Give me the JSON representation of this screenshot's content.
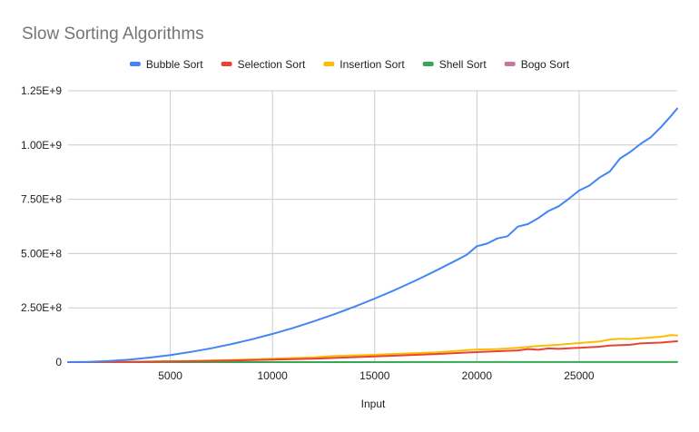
{
  "chart_data": {
    "type": "line",
    "title": "Slow Sorting Algorithms",
    "xlabel": "Input",
    "ylabel": "",
    "xlim": [
      0,
      29800
    ],
    "ylim": [
      0,
      1250000000
    ],
    "x_ticks": [
      5000,
      10000,
      15000,
      20000,
      25000
    ],
    "x_tick_labels": [
      "5000",
      "10000",
      "15000",
      "20000",
      "25000"
    ],
    "y_ticks": [
      0,
      250000000,
      500000000,
      750000000,
      1000000000,
      1250000000
    ],
    "y_tick_labels": [
      "0",
      "2.50E+8",
      "5.00E+8",
      "7.50E+8",
      "1.00E+9",
      "1.25E+9"
    ],
    "grid": true,
    "legend_position": "top",
    "series": [
      {
        "name": "Bubble Sort",
        "color": "#4285f4",
        "points": [
          [
            0,
            0
          ],
          [
            1000,
            1300000
          ],
          [
            2000,
            5200000
          ],
          [
            3000,
            11700000
          ],
          [
            4000,
            20800000
          ],
          [
            5000,
            32500000
          ],
          [
            6000,
            46800000
          ],
          [
            7000,
            63700000
          ],
          [
            8000,
            83200000
          ],
          [
            9000,
            105300000
          ],
          [
            10000,
            130000000
          ],
          [
            11000,
            157300000
          ],
          [
            12000,
            187200000
          ],
          [
            13000,
            219700000
          ],
          [
            14000,
            254800000
          ],
          [
            15000,
            292500000
          ],
          [
            16000,
            332800000
          ],
          [
            17000,
            375700000
          ],
          [
            18000,
            421200000
          ],
          [
            19000,
            469300000
          ],
          [
            19500,
            494300000
          ],
          [
            20000,
            534000000
          ],
          [
            20500,
            546000000
          ],
          [
            21000,
            570000000
          ],
          [
            21500,
            580000000
          ],
          [
            22000,
            624000000
          ],
          [
            22500,
            636000000
          ],
          [
            23000,
            663000000
          ],
          [
            23500,
            696000000
          ],
          [
            24000,
            718000000
          ],
          [
            24500,
            753000000
          ],
          [
            25000,
            790000000
          ],
          [
            25500,
            813000000
          ],
          [
            26000,
            850000000
          ],
          [
            26500,
            878000000
          ],
          [
            27000,
            938000000
          ],
          [
            27500,
            968000000
          ],
          [
            28000,
            1005000000
          ],
          [
            28500,
            1035000000
          ],
          [
            29000,
            1082000000
          ],
          [
            29500,
            1134000000
          ],
          [
            29800,
            1168000000
          ]
        ]
      },
      {
        "name": "Selection Sort",
        "color": "#ea4335",
        "points": [
          [
            0,
            0
          ],
          [
            3000,
            1000000
          ],
          [
            6000,
            4000000
          ],
          [
            9000,
            9000000
          ],
          [
            12000,
            16000000
          ],
          [
            15000,
            26000000
          ],
          [
            18000,
            37000000
          ],
          [
            20000,
            46000000
          ],
          [
            21000,
            50000000
          ],
          [
            22000,
            54000000
          ],
          [
            22500,
            60000000
          ],
          [
            23000,
            57000000
          ],
          [
            23500,
            63000000
          ],
          [
            24000,
            61000000
          ],
          [
            25000,
            66000000
          ],
          [
            26000,
            71000000
          ],
          [
            26500,
            76000000
          ],
          [
            27500,
            80000000
          ],
          [
            28000,
            86000000
          ],
          [
            29000,
            90000000
          ],
          [
            29800,
            96000000
          ]
        ]
      },
      {
        "name": "Insertion Sort",
        "color": "#fbbc04",
        "points": [
          [
            0,
            0
          ],
          [
            3000,
            1500000
          ],
          [
            6000,
            5500000
          ],
          [
            9000,
            12500000
          ],
          [
            12000,
            22000000
          ],
          [
            13000,
            28000000
          ],
          [
            15000,
            34000000
          ],
          [
            18000,
            45000000
          ],
          [
            20000,
            58000000
          ],
          [
            21000,
            60000000
          ],
          [
            22000,
            66000000
          ],
          [
            23000,
            74000000
          ],
          [
            24000,
            80000000
          ],
          [
            25000,
            88000000
          ],
          [
            26000,
            95000000
          ],
          [
            26500,
            104000000
          ],
          [
            27000,
            108000000
          ],
          [
            27500,
            106000000
          ],
          [
            28000,
            110000000
          ],
          [
            29000,
            117000000
          ],
          [
            29500,
            124000000
          ],
          [
            29800,
            123000000
          ]
        ]
      },
      {
        "name": "Shell Sort",
        "color": "#34a853",
        "points": [
          [
            0,
            0
          ],
          [
            29800,
            400000
          ]
        ]
      },
      {
        "name": "Bogo Sort",
        "color": "#c27ba0",
        "points": []
      }
    ]
  }
}
